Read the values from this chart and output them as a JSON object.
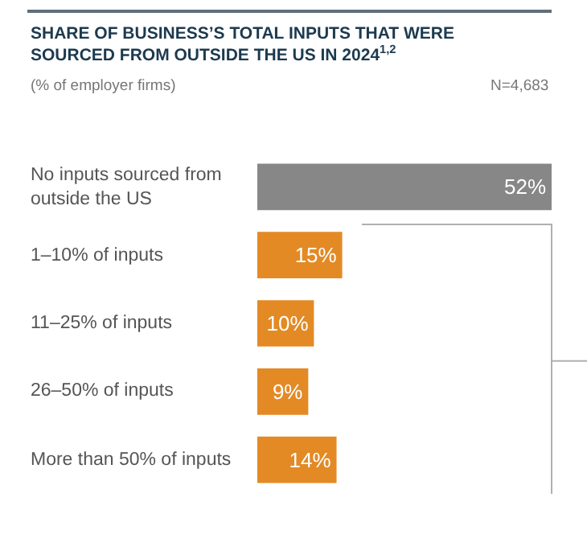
{
  "chart_data": {
    "type": "bar",
    "orientation": "horizontal",
    "title": "SHARE OF BUSINESS’S TOTAL INPUTS THAT WERE SOURCED FROM OUTSIDE THE US IN 2024$^{1,2}$",
    "subtitle": "(% of employer firms)",
    "annotations": [
      "N=4,683"
    ],
    "categories": [
      "No inputs sourced from outside the US",
      "1–10% of inputs",
      "11–25% of inputs",
      "26–50% of inputs",
      "More than 50% of inputs"
    ],
    "values": [
      52,
      15,
      10,
      9,
      14
    ],
    "value_labels": [
      "52%",
      "15%",
      "10%",
      "9%",
      "14%"
    ],
    "colors": [
      "#878787",
      "#e38a25",
      "#e38a25",
      "#e38a25",
      "#e38a25"
    ]
  }
}
